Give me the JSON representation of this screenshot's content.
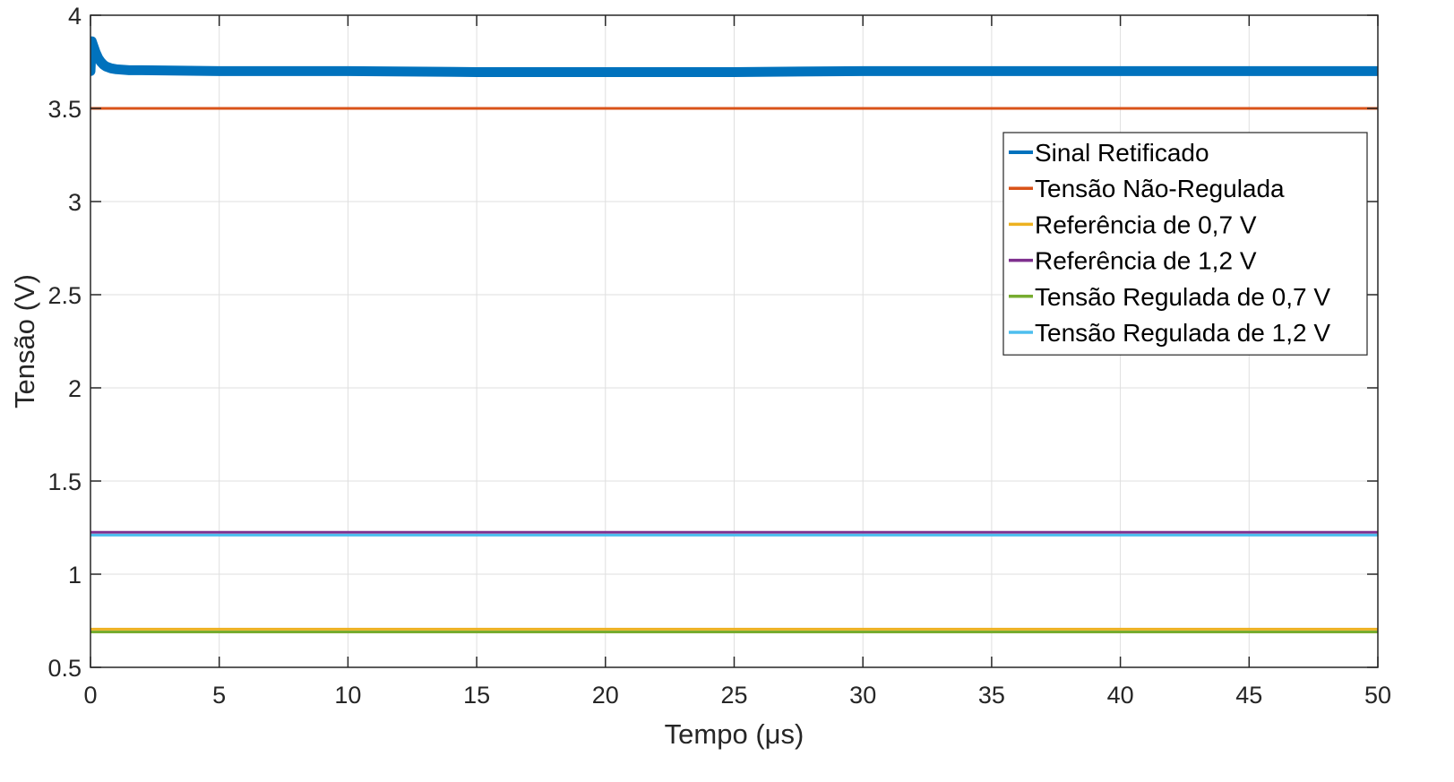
{
  "chart_data": {
    "type": "line",
    "xlabel": "Tempo (μs)",
    "ylabel": "Tensão (V)",
    "xlim": [
      0,
      50
    ],
    "ylim": [
      0.5,
      4
    ],
    "xticks": [
      0,
      5,
      10,
      15,
      20,
      25,
      30,
      35,
      40,
      45,
      50
    ],
    "yticks": [
      0.5,
      1,
      1.5,
      2,
      2.5,
      3,
      3.5,
      4
    ],
    "xtick_labels": [
      "0",
      "5",
      "10",
      "15",
      "20",
      "25",
      "30",
      "35",
      "40",
      "45",
      "50"
    ],
    "ytick_labels": [
      "0.5",
      "1",
      "1.5",
      "2",
      "2.5",
      "3",
      "3.5",
      "4"
    ],
    "grid": true,
    "legend_position": "top-right",
    "series": [
      {
        "name": "Sinal Retificado",
        "color": "#0072BD",
        "x": [
          0,
          0.05,
          0.1,
          0.2,
          0.3,
          0.4,
          0.5,
          0.6,
          0.8,
          1,
          1.5,
          2,
          5,
          10,
          15,
          20,
          25,
          30,
          35,
          40,
          45,
          50
        ],
        "y": [
          3.7,
          3.86,
          3.84,
          3.8,
          3.77,
          3.75,
          3.735,
          3.725,
          3.715,
          3.71,
          3.705,
          3.705,
          3.7,
          3.7,
          3.695,
          3.695,
          3.695,
          3.7,
          3.7,
          3.7,
          3.7,
          3.7
        ]
      },
      {
        "name": "Tensão Não-Regulada",
        "color": "#D95319",
        "x": [
          0,
          50
        ],
        "y": [
          3.5,
          3.5
        ]
      },
      {
        "name": "Referência de 0,7 V",
        "color": "#EDB120",
        "x": [
          0,
          50
        ],
        "y": [
          0.705,
          0.705
        ]
      },
      {
        "name": "Referência de 1,2 V",
        "color": "#7E2F8E",
        "x": [
          0,
          50
        ],
        "y": [
          1.225,
          1.225
        ]
      },
      {
        "name": "Tensão Regulada de 0,7 V",
        "color": "#77AC30",
        "x": [
          0,
          50
        ],
        "y": [
          0.69,
          0.69
        ]
      },
      {
        "name": "Tensão Regulada de 1,2 V",
        "color": "#4DBEEE",
        "x": [
          0,
          50
        ],
        "y": [
          1.21,
          1.21
        ]
      }
    ]
  }
}
